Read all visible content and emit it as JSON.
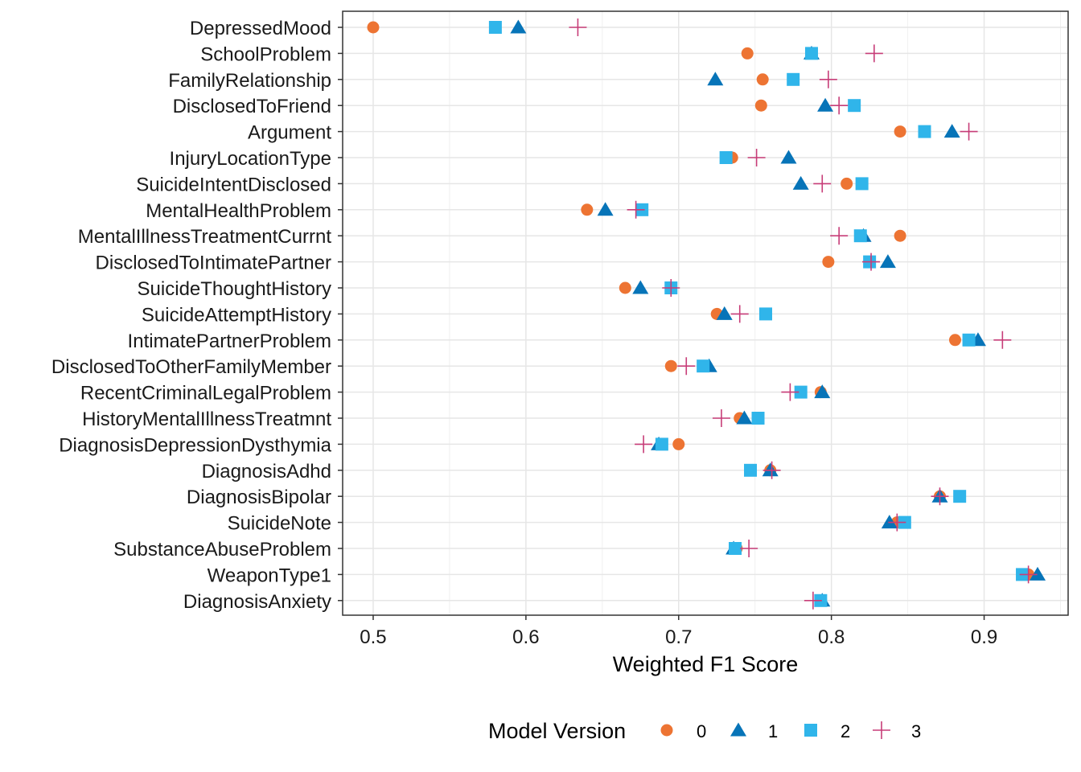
{
  "chart_data": {
    "type": "scatter",
    "title": "",
    "xlabel": "Weighted F1 Score",
    "ylabel": "",
    "xlim": [
      0.48,
      0.955
    ],
    "x_ticks": [
      "0.5",
      "0.6",
      "0.7",
      "0.8",
      "0.9"
    ],
    "x_tick_values": [
      0.5,
      0.6,
      0.7,
      0.8,
      0.9
    ],
    "grid": true,
    "legend": {
      "title": "Model Version",
      "position": "bottom"
    },
    "categories": [
      "DepressedMood",
      "SchoolProblem",
      "FamilyRelationship",
      "DisclosedToFriend",
      "Argument",
      "InjuryLocationType",
      "SuicideIntentDisclosed",
      "MentalHealthProblem",
      "MentalIllnessTreatmentCurrnt",
      "DisclosedToIntimatePartner",
      "SuicideThoughtHistory",
      "SuicideAttemptHistory",
      "IntimatePartnerProblem",
      "DisclosedToOtherFamilyMember",
      "RecentCriminalLegalProblem",
      "HistoryMentalIllnessTreatmnt",
      "DiagnosisDepressionDysthymia",
      "DiagnosisAdhd",
      "DiagnosisBipolar",
      "SuicideNote",
      "SubstanceAbuseProblem",
      "WeaponType1",
      "DiagnosisAnxiety"
    ],
    "series": [
      {
        "name": "0",
        "shape": "circle",
        "color": "#ED7433",
        "values": [
          0.5,
          0.745,
          0.755,
          0.754,
          0.845,
          0.735,
          0.81,
          0.64,
          0.845,
          0.798,
          0.665,
          0.725,
          0.881,
          0.695,
          0.793,
          0.74,
          0.7,
          0.76,
          0.871,
          0.843,
          0.738,
          0.929,
          0.793
        ]
      },
      {
        "name": "1",
        "shape": "triangle",
        "color": "#0774B8",
        "values": [
          0.595,
          0.787,
          0.724,
          0.796,
          0.879,
          0.772,
          0.78,
          0.652,
          0.821,
          0.837,
          0.675,
          0.73,
          0.896,
          0.72,
          0.794,
          0.743,
          0.687,
          0.76,
          0.871,
          0.838,
          0.736,
          0.935,
          0.794
        ]
      },
      {
        "name": "2",
        "shape": "square",
        "color": "#30B5EA",
        "values": [
          0.58,
          0.787,
          0.775,
          0.815,
          0.861,
          0.731,
          0.82,
          0.676,
          0.819,
          0.825,
          0.695,
          0.757,
          0.89,
          0.716,
          0.78,
          0.752,
          0.689,
          0.747,
          0.884,
          0.848,
          0.737,
          0.925,
          0.793
        ]
      },
      {
        "name": "3",
        "shape": "plus",
        "color": "#C73D78",
        "values": [
          0.634,
          0.828,
          0.798,
          0.805,
          0.89,
          0.751,
          0.794,
          0.672,
          0.805,
          0.826,
          0.695,
          0.74,
          0.912,
          0.705,
          0.773,
          0.728,
          0.677,
          0.761,
          0.871,
          0.843,
          0.746,
          0.929,
          0.788
        ]
      }
    ]
  }
}
